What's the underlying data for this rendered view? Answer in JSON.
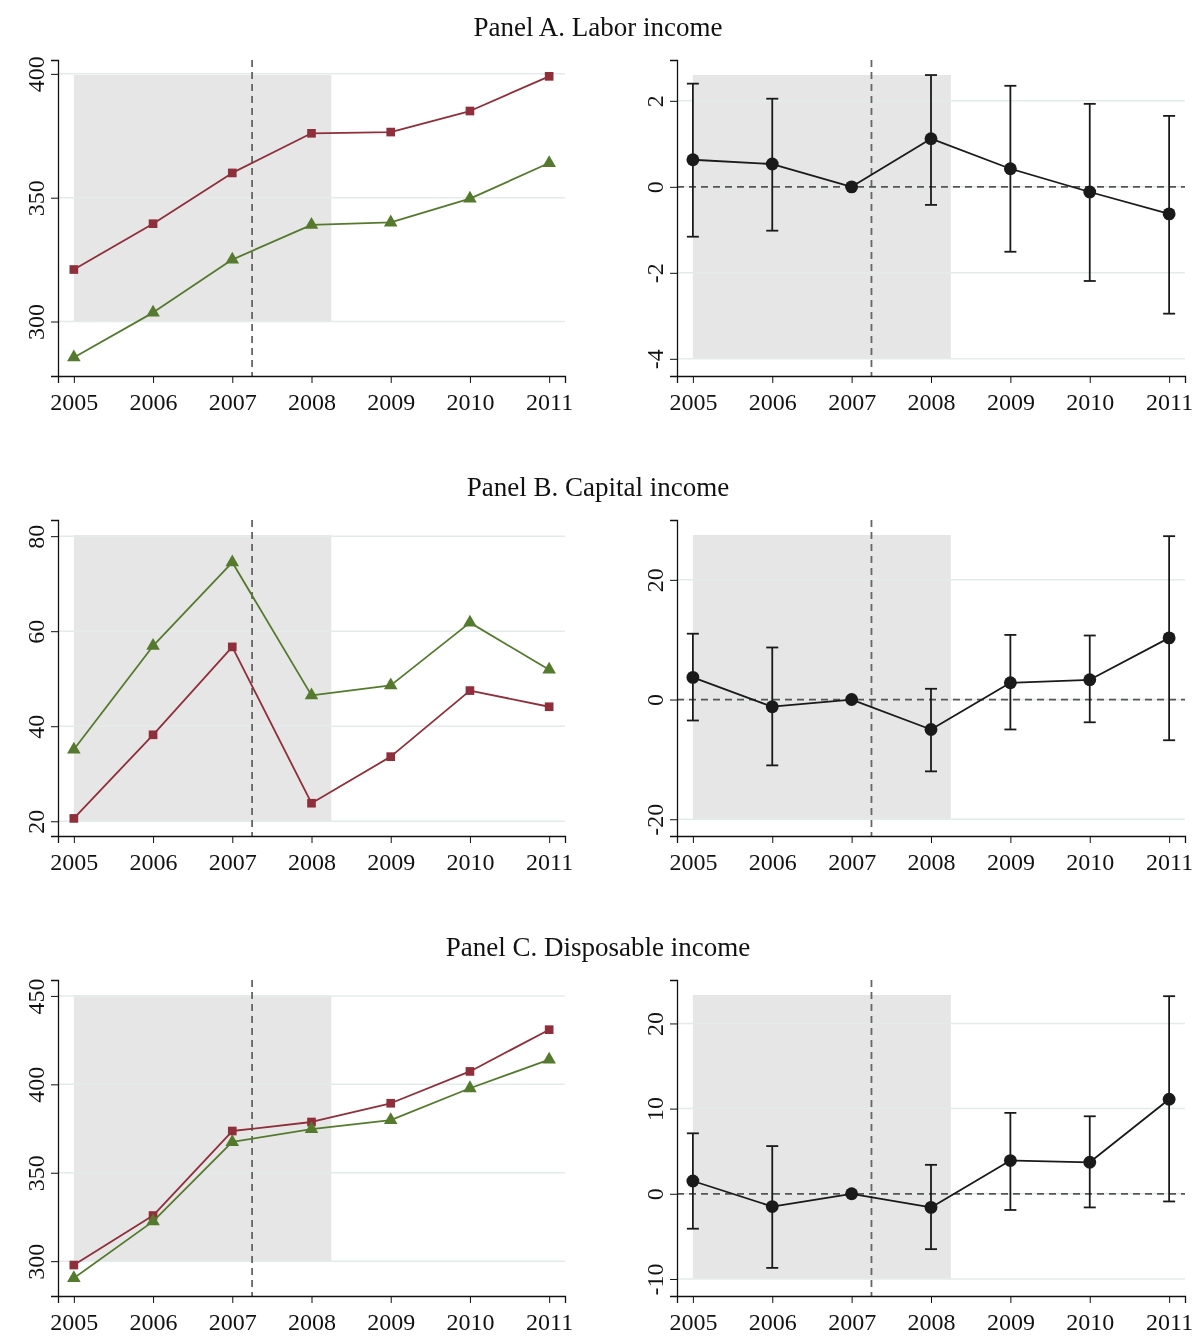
{
  "chart_data": [
    {
      "type": "line",
      "title": "Panel A. Labor income",
      "x": [
        2005,
        2006,
        2007,
        2008,
        2009,
        2010,
        2011
      ],
      "xlim": [
        2004.8,
        2011.2
      ],
      "xticks": [
        2005,
        2006,
        2007,
        2008,
        2009,
        2010,
        2011
      ],
      "ylim": [
        278,
        405.6
      ],
      "yticks": [
        300,
        350,
        400
      ],
      "grid": "y",
      "series": [
        {
          "color": "#8e2f3b",
          "marker": "square",
          "values": [
            321,
            339.5,
            360,
            376,
            376.5,
            385,
            399
          ]
        },
        {
          "color": "#557a2e",
          "marker": "triangle",
          "values": [
            285.5,
            303.6,
            325,
            339,
            340,
            349.6,
            364
          ]
        }
      ],
      "bands": [
        {
          "axis": "x",
          "from": 2005,
          "to": 2008.25,
          "color": "#e6e6e6"
        }
      ],
      "ref_lines": [
        {
          "axis": "x",
          "value": 2007.25,
          "color": "#666666",
          "line_style": "dashed"
        }
      ]
    },
    {
      "type": "line",
      "x": [
        2005,
        2006,
        2007,
        2008,
        2009,
        2010,
        2011
      ],
      "xlim": [
        2004.8,
        2011.2
      ],
      "xticks": [
        2005,
        2006,
        2007,
        2008,
        2009,
        2010,
        2011
      ],
      "ylim": [
        -4.4,
        2.95
      ],
      "yticks": [
        -4,
        -2,
        0,
        2
      ],
      "grid": "y",
      "marker": "circle",
      "series": [
        {
          "color": "#1a1a1a",
          "values": [
            0.63,
            0.53,
            0,
            1.12,
            0.42,
            -0.12,
            -0.63
          ],
          "errors": [
            [
              -1.16,
              2.4
            ],
            [
              -1.02,
              2.05
            ],
            null,
            [
              -0.42,
              2.6
            ],
            [
              -1.51,
              2.35
            ],
            [
              -2.19,
              1.93
            ],
            [
              -2.95,
              1.65
            ]
          ]
        }
      ],
      "bands": [
        {
          "axis": "x",
          "from": 2005,
          "to": 2008.25,
          "color": "#e6e6e6"
        }
      ],
      "ref_lines": [
        {
          "axis": "x",
          "value": 2007.25,
          "color": "#666666",
          "line_style": "dashed"
        },
        {
          "axis": "y",
          "value": 0,
          "color": "#555555",
          "line_style": "dashed"
        }
      ]
    },
    {
      "type": "line",
      "title": "Panel B. Capital income",
      "x": [
        2005,
        2006,
        2007,
        2008,
        2009,
        2010,
        2011
      ],
      "xlim": [
        2004.8,
        2011.2
      ],
      "xticks": [
        2005,
        2006,
        2007,
        2008,
        2009,
        2010,
        2011
      ],
      "ylim": [
        16.9,
        83.4
      ],
      "yticks": [
        20,
        40,
        60,
        80
      ],
      "grid": "y",
      "series": [
        {
          "color": "#8e2f3b",
          "marker": "square",
          "values": [
            20.6,
            38.2,
            56.7,
            23.8,
            33.6,
            47.5,
            44.1
          ]
        },
        {
          "color": "#557a2e",
          "marker": "triangle",
          "values": [
            35.1,
            56.9,
            74.5,
            46.5,
            48.6,
            61.8,
            51.9
          ]
        }
      ],
      "bands": [
        {
          "axis": "x",
          "from": 2005,
          "to": 2008.25,
          "color": "#e6e6e6"
        }
      ],
      "ref_lines": [
        {
          "axis": "x",
          "value": 2007.25,
          "color": "#666666",
          "line_style": "dashed"
        }
      ]
    },
    {
      "type": "line",
      "x": [
        2005,
        2006,
        2007,
        2008,
        2009,
        2010,
        2011
      ],
      "xlim": [
        2004.8,
        2011.2
      ],
      "xticks": [
        2005,
        2006,
        2007,
        2008,
        2009,
        2010,
        2011
      ],
      "ylim": [
        -22.8,
        30
      ],
      "yticks": [
        -20,
        0,
        20
      ],
      "grid": "y",
      "marker": "circle",
      "series": [
        {
          "color": "#1a1a1a",
          "values": [
            3.7,
            -1.2,
            0,
            -5,
            2.8,
            3.3,
            10.3
          ],
          "errors": [
            [
              -3.5,
              11
            ],
            [
              -11,
              8.7
            ],
            null,
            [
              -12,
              1.8
            ],
            [
              -5,
              10.8
            ],
            [
              -3.8,
              10.7
            ],
            [
              -6.8,
              27.3
            ]
          ]
        }
      ],
      "bands": [
        {
          "axis": "x",
          "from": 2005,
          "to": 2008.25,
          "color": "#e6e6e6"
        }
      ],
      "ref_lines": [
        {
          "axis": "x",
          "value": 2007.25,
          "color": "#666666",
          "line_style": "dashed"
        },
        {
          "axis": "y",
          "value": 0,
          "color": "#555555",
          "line_style": "dashed"
        }
      ]
    },
    {
      "type": "line",
      "title": "Panel C. Disposable income",
      "x": [
        2005,
        2006,
        2007,
        2008,
        2009,
        2010,
        2011
      ],
      "xlim": [
        2004.8,
        2011.2
      ],
      "xticks": [
        2005,
        2006,
        2007,
        2008,
        2009,
        2010,
        2011
      ],
      "ylim": [
        280.3,
        459
      ],
      "yticks": [
        300,
        350,
        400,
        450
      ],
      "grid": "y",
      "series": [
        {
          "color": "#8e2f3b",
          "marker": "square",
          "values": [
            297.8,
            325.8,
            373.6,
            378.7,
            389.3,
            407.3,
            430.9
          ]
        },
        {
          "color": "#557a2e",
          "marker": "triangle",
          "values": [
            290.4,
            322.5,
            367.4,
            374.7,
            379.8,
            397.8,
            414
          ]
        }
      ],
      "bands": [
        {
          "axis": "x",
          "from": 2005,
          "to": 2008.25,
          "color": "#e6e6e6"
        }
      ],
      "ref_lines": [
        {
          "axis": "x",
          "value": 2007.25,
          "color": "#666666",
          "line_style": "dashed"
        }
      ]
    },
    {
      "type": "line",
      "x": [
        2005,
        2006,
        2007,
        2008,
        2009,
        2010,
        2011
      ],
      "xlim": [
        2004.8,
        2011.2
      ],
      "xticks": [
        2005,
        2006,
        2007,
        2008,
        2009,
        2010,
        2011
      ],
      "ylim": [
        -12,
        25.1
      ],
      "yticks": [
        -10,
        0,
        10,
        20
      ],
      "grid": "y",
      "marker": "circle",
      "series": [
        {
          "color": "#1a1a1a",
          "values": [
            1.5,
            -1.5,
            0,
            -1.6,
            3.9,
            3.7,
            11.1
          ],
          "errors": [
            [
              -4.1,
              7.1
            ],
            [
              -8.7,
              5.6
            ],
            null,
            [
              -6.5,
              3.4
            ],
            [
              -1.9,
              9.5
            ],
            [
              -1.6,
              9.1
            ],
            [
              -0.9,
              23.2
            ]
          ]
        }
      ],
      "bands": [
        {
          "axis": "x",
          "from": 2005,
          "to": 2008.25,
          "color": "#e6e6e6"
        }
      ],
      "ref_lines": [
        {
          "axis": "x",
          "value": 2007.25,
          "color": "#666666",
          "line_style": "dashed"
        },
        {
          "axis": "y",
          "value": 0,
          "color": "#555555",
          "line_style": "dashed"
        }
      ]
    }
  ]
}
